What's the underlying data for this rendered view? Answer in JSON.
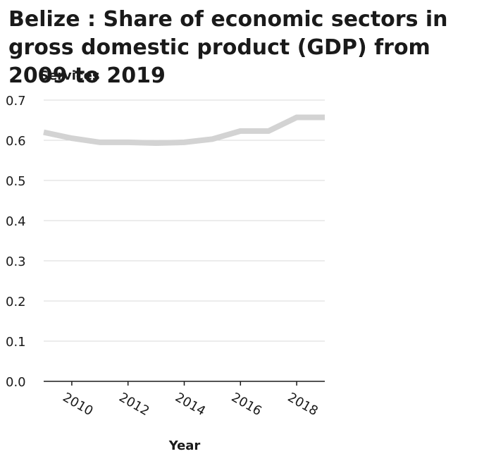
{
  "chart_data": {
    "type": "line",
    "title": "Belize : Share of economic sectors in gross domestic product (GDP) from 2009 to 2019",
    "xlabel": "Year",
    "ylabel": "Services",
    "xlim": [
      2009,
      2019
    ],
    "ylim": [
      0,
      0.7
    ],
    "x_ticks": [
      2010,
      2012,
      2014,
      2016,
      2018
    ],
    "y_ticks": [
      "0.0",
      "0.1",
      "0.2",
      "0.3",
      "0.4",
      "0.5",
      "0.6",
      "0.7"
    ],
    "grid": true,
    "series": [
      {
        "color": "#d3d3d3",
        "x": [
          2009,
          2010,
          2011,
          2012,
          2013,
          2014,
          2015,
          2016,
          2017,
          2018,
          2019
        ],
        "values": [
          0.62,
          0.605,
          0.595,
          0.595,
          0.593,
          0.595,
          0.603,
          0.623,
          0.623,
          0.657,
          0.657
        ]
      }
    ]
  }
}
